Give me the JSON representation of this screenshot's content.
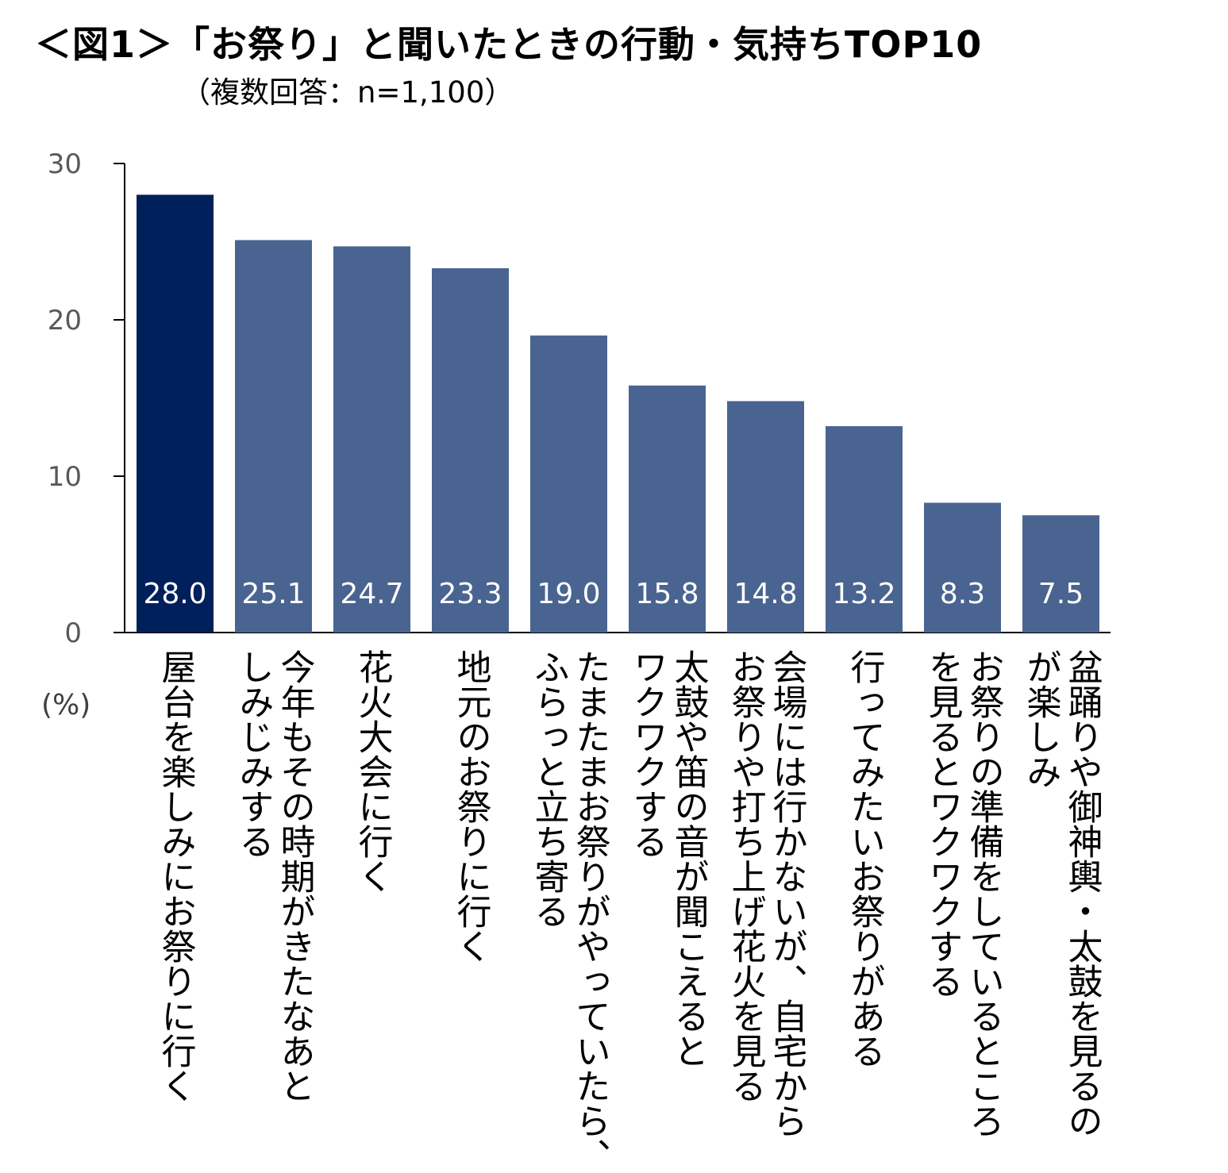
{
  "header": {
    "title": "＜図1＞「お祭り」と聞いたときの行動・気持ちTOP10",
    "subtitle": "（複数回答：n=1,100）"
  },
  "chart_data": {
    "type": "bar",
    "title": "＜図1＞「お祭り」と聞いたときの行動・気持ちTOP10",
    "subtitle": "（複数回答：n=1,100）",
    "ylabel": "(%)",
    "xlabel": "",
    "ylim": [
      0,
      30
    ],
    "yticks": [
      0,
      10,
      20,
      30
    ],
    "grid": false,
    "legend": "none",
    "categories": [
      "屋台を楽しみにお祭りに行く",
      "今年もその時期がきたなあとしみじみする",
      "花火大会に行く",
      "地元のお祭りに行く",
      "たまたまお祭りがやっていたら、ふらっと立ち寄る",
      "太鼓や笛の音が聞こえるとワクワクする",
      "会場には行かないが、自宅からお祭りや打ち上げ花火を見る",
      "行ってみたいお祭りがある",
      "お祭りの準備をしているところを見るとワクワクする",
      "盆踊りや御神輿・太鼓を見るのが楽しみ"
    ],
    "category_lines": [
      [
        "屋台を楽しみにお祭りに行く"
      ],
      [
        "今年もその時期がきたなあと",
        "しみじみする"
      ],
      [
        "花火大会に行く"
      ],
      [
        "地元のお祭りに行く"
      ],
      [
        "たまたまお祭りがやっていたら、",
        "ふらっと立ち寄る"
      ],
      [
        "太鼓や笛の音が聞こえると",
        "ワクワクする"
      ],
      [
        "会場には行かないが、自宅から",
        "お祭りや打ち上げ花火を見る"
      ],
      [
        "行ってみたいお祭りがある"
      ],
      [
        "お祭りの準備をしているところ",
        "を見るとワクワクする"
      ],
      [
        "盆踊りや御神輿・太鼓を見るの",
        "が楽しみ"
      ]
    ],
    "values": [
      28.0,
      25.1,
      24.7,
      23.3,
      19.0,
      15.8,
      14.8,
      13.2,
      8.3,
      7.5
    ],
    "value_labels": [
      "28.0",
      "25.1",
      "24.7",
      "23.3",
      "19.0",
      "15.8",
      "14.8",
      "13.2",
      "8.3",
      "7.5"
    ],
    "highlight_index": 0,
    "colors": {
      "highlight": "#00205b",
      "bar": "#4a6491",
      "axis": "#000000",
      "tick_text": "#595959",
      "data_label_text": "#ffffff"
    }
  }
}
